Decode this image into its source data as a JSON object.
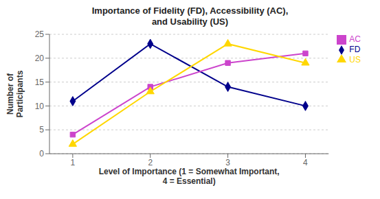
{
  "chart_data": {
    "type": "line",
    "title": "Importance of Fidelity (FD), Accessibility (AC),\nand Usability (US)",
    "xlabel": "Level of Importance (1 = Somewhat Important,\n4 = Essential)",
    "ylabel": "Number of\nParticipants",
    "x": [
      1,
      2,
      3,
      4
    ],
    "series": [
      {
        "name": "FD",
        "color": "#00008B",
        "marker": "diamond",
        "values": [
          11,
          23,
          14,
          10
        ]
      },
      {
        "name": "AC",
        "color": "#CC44CC",
        "marker": "square",
        "values": [
          4,
          14,
          19,
          21
        ]
      },
      {
        "name": "US",
        "color": "#FFD700",
        "marker": "triangle",
        "values": [
          2,
          13,
          23,
          19
        ]
      }
    ],
    "xlim": [
      0.7,
      4.3
    ],
    "xticks": [
      1,
      2,
      3,
      4
    ],
    "ylim": [
      0,
      25
    ],
    "yticks": [
      0,
      5,
      10,
      15,
      20,
      25
    ],
    "grid": true,
    "legend": "right"
  }
}
